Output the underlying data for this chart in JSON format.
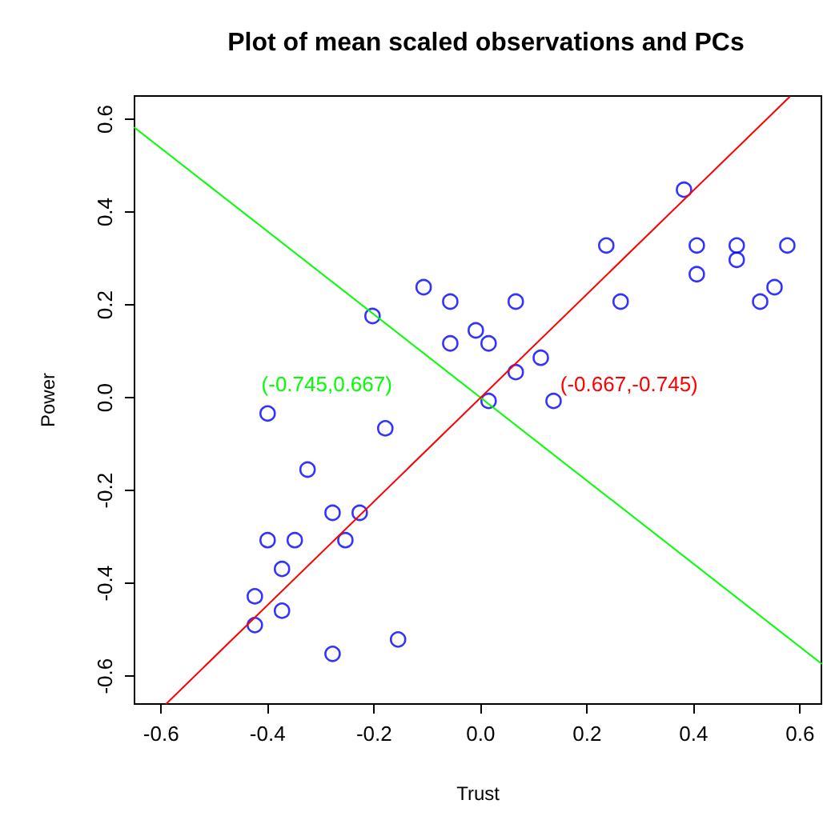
{
  "chart_data": {
    "type": "scatter",
    "title": "Plot of mean scaled observations and PCs",
    "xlabel": "Trust",
    "ylabel": "Power",
    "xlim": [
      -0.65,
      0.64
    ],
    "ylim": [
      -0.66,
      0.65
    ],
    "xticks": [
      -0.6,
      -0.4,
      -0.2,
      {
        "value": 0,
        "label": "0.0"
      },
      0.2,
      0.4,
      0.6
    ],
    "yticks": [
      -0.6,
      -0.4,
      -0.2,
      {
        "value": 0,
        "label": "0.0"
      },
      0.2,
      0.4,
      0.6
    ],
    "grid": false,
    "marker": "circle",
    "series": [
      {
        "type": "scatter",
        "color": "#0000ff",
        "x": [
          0.382,
          0.236,
          0.406,
          0.481,
          0.576,
          0.406,
          0.481,
          0.552,
          0.525,
          0.263,
          -0.107,
          -0.057,
          0.066,
          -0.203,
          -0.009,
          -0.057,
          0.015,
          0.113,
          0.066,
          0.015,
          0.137,
          -0.4,
          -0.179,
          -0.325,
          -0.278,
          -0.227,
          -0.349,
          -0.4,
          -0.254,
          -0.373,
          -0.424,
          -0.373,
          -0.424,
          -0.278,
          -0.155
        ],
        "values": [
          0.448,
          0.328,
          0.328,
          0.328,
          0.328,
          0.266,
          0.297,
          0.238,
          0.207,
          0.207,
          0.238,
          0.207,
          0.207,
          0.176,
          0.145,
          0.117,
          0.117,
          0.086,
          0.055,
          -0.007,
          -0.007,
          -0.034,
          -0.066,
          -0.155,
          -0.248,
          -0.248,
          -0.307,
          -0.307,
          -0.307,
          -0.369,
          -0.428,
          -0.459,
          -0.49,
          -0.552,
          -0.521
        ]
      },
      {
        "type": "line",
        "color": "#00ff00",
        "marker": "none",
        "line_style": "solid",
        "x": [
          -0.65,
          0.64
        ],
        "values": [
          0.582,
          -0.573
        ]
      },
      {
        "type": "line",
        "color": "#ff0000",
        "marker": "none",
        "line_style": "solid",
        "x": [
          -0.59,
          0.58
        ],
        "values": [
          -0.659,
          0.648
        ]
      }
    ],
    "annotations": [
      "(-0.745,0.667)",
      "(-0.667,-0.745)"
    ]
  }
}
